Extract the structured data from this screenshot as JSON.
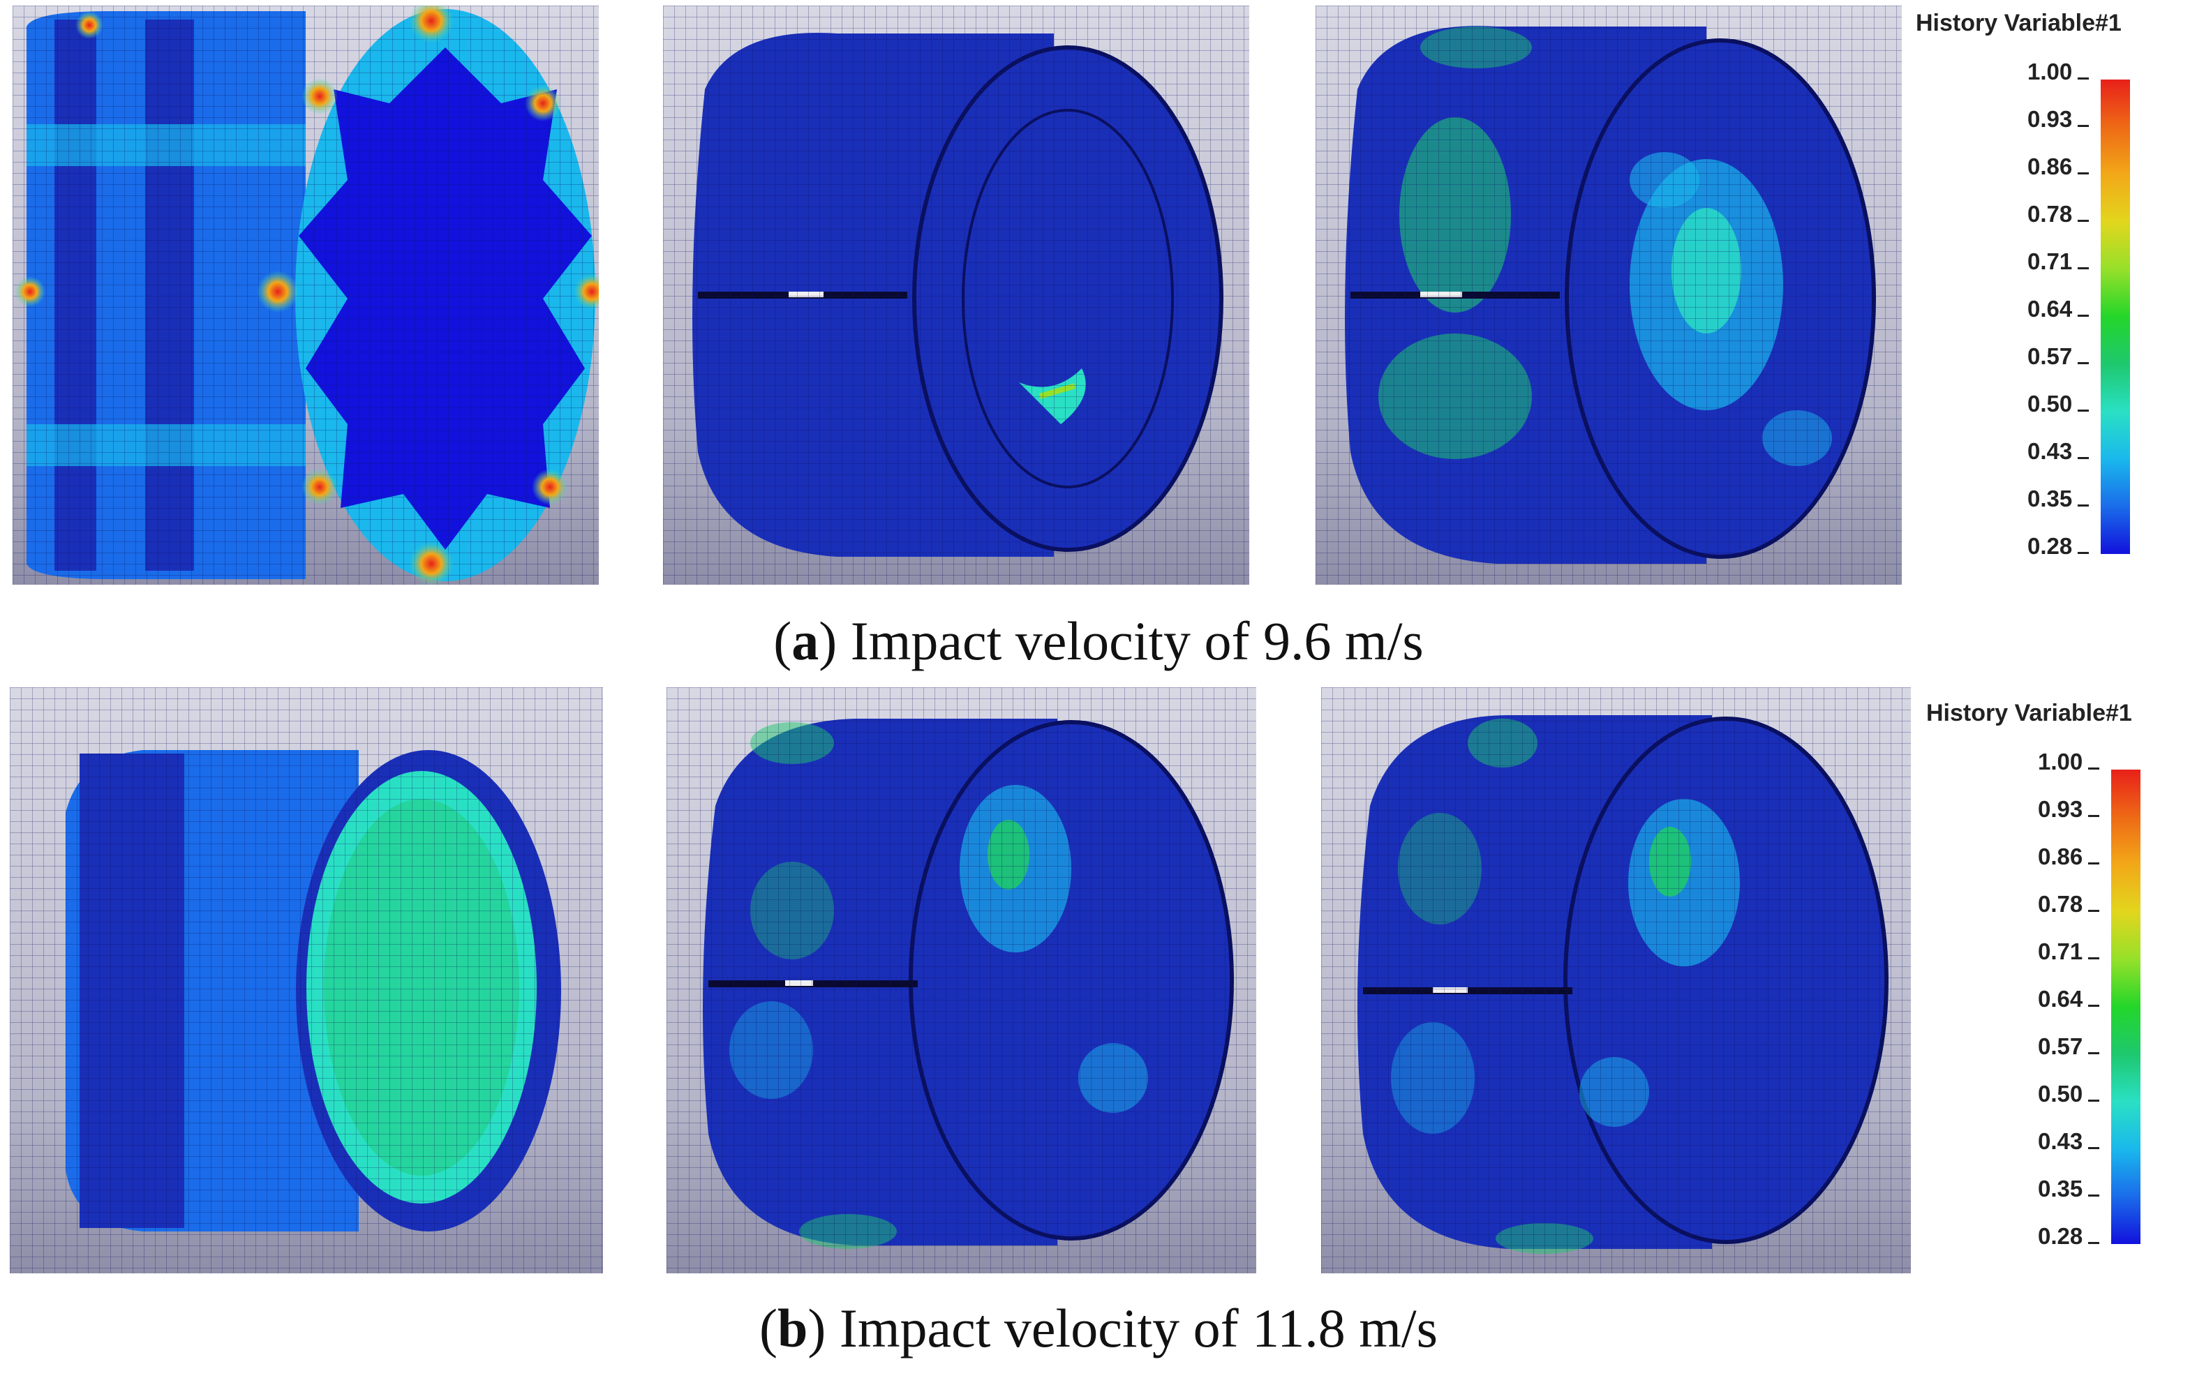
{
  "legend": {
    "title": "History Variable#1",
    "ticks": [
      "1.00",
      "0.93",
      "0.86",
      "0.78",
      "0.71",
      "0.64",
      "0.57",
      "0.50",
      "0.43",
      "0.35",
      "0.28"
    ],
    "colors": [
      "#e8201a",
      "#ee6a16",
      "#f2a818",
      "#e2d61e",
      "#96e02a",
      "#24d62a",
      "#1ec86e",
      "#2ae0c4",
      "#1ab8ec",
      "#1a6cea",
      "#1212dc"
    ]
  },
  "captions": {
    "a": {
      "label": "a",
      "text": "Impact velocity of 9.6 m/s"
    },
    "b": {
      "label": "b",
      "text": "Impact velocity of 11.8 m/s"
    }
  },
  "colors": {
    "background_top": "#d8d8e4",
    "background_bottom": "#8e8ea8",
    "mesh_blue": "#1a2fb8",
    "deep_blue": "#0f1a8c"
  }
}
